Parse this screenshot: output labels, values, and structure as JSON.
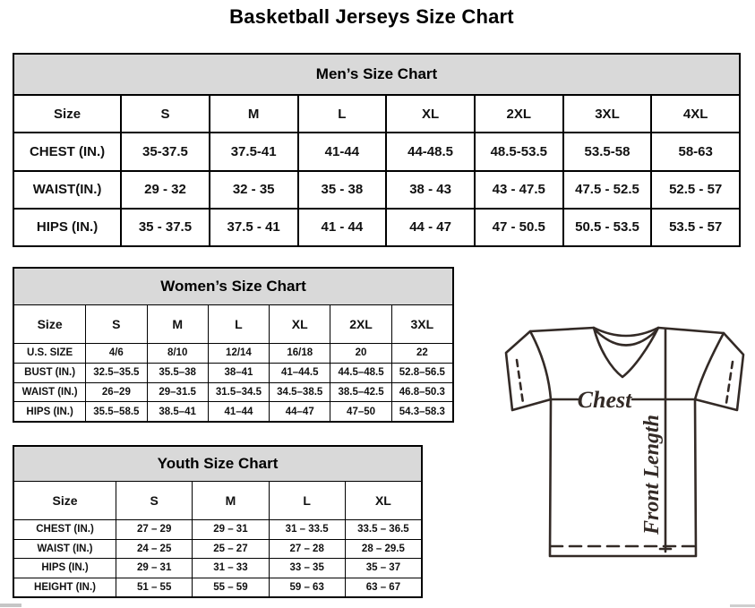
{
  "page": {
    "title": "Basketball Jerseys Size Chart"
  },
  "mens": {
    "title": "Men’s Size Chart",
    "columns": [
      "Size",
      "S",
      "M",
      "L",
      "XL",
      "2XL",
      "3XL",
      "4XL"
    ],
    "rows": [
      {
        "label": "CHEST (IN.)",
        "values": [
          "35-37.5",
          "37.5-41",
          "41-44",
          "44-48.5",
          "48.5-53.5",
          "53.5-58",
          "58-63"
        ]
      },
      {
        "label": "WAIST(IN.)",
        "values": [
          "29 - 32",
          "32 - 35",
          "35 - 38",
          "38 - 43",
          "43 - 47.5",
          "47.5 - 52.5",
          "52.5 - 57"
        ]
      },
      {
        "label": "HIPS (IN.)",
        "values": [
          "35 - 37.5",
          "37.5 - 41",
          "41 - 44",
          "44 - 47",
          "47 - 50.5",
          "50.5 - 53.5",
          "53.5 - 57"
        ]
      }
    ]
  },
  "womens": {
    "title": "Women’s Size Chart",
    "columns": [
      "Size",
      "S",
      "M",
      "L",
      "XL",
      "2XL",
      "3XL"
    ],
    "rows": [
      {
        "label": "U.S. SIZE",
        "values": [
          "4/6",
          "8/10",
          "12/14",
          "16/18",
          "20",
          "22"
        ]
      },
      {
        "label": "BUST (IN.)",
        "values": [
          "32.5–35.5",
          "35.5–38",
          "38–41",
          "41–44.5",
          "44.5–48.5",
          "52.8–56.5"
        ]
      },
      {
        "label": "WAIST (IN.)",
        "values": [
          "26–29",
          "29–31.5",
          "31.5–34.5",
          "34.5–38.5",
          "38.5–42.5",
          "46.8–50.3"
        ]
      },
      {
        "label": "HIPS (IN.)",
        "values": [
          "35.5–58.5",
          "38.5–41",
          "41–44",
          "44–47",
          "47–50",
          "54.3–58.3"
        ]
      }
    ]
  },
  "youth": {
    "title": "Youth Size Chart",
    "columns": [
      "Size",
      "S",
      "M",
      "L",
      "XL"
    ],
    "rows": [
      {
        "label": "CHEST (IN.)",
        "values": [
          "27 – 29",
          "29 – 31",
          "31 – 33.5",
          "33.5 – 36.5"
        ]
      },
      {
        "label": "WAIST (IN.)",
        "values": [
          "24 – 25",
          "25 – 27",
          "27 – 28",
          "28 – 29.5"
        ]
      },
      {
        "label": "HIPS (IN.)",
        "values": [
          "29 – 31",
          "31 – 33",
          "33 – 35",
          "35 – 37"
        ]
      },
      {
        "label": "HEIGHT (IN.)",
        "values": [
          "51 – 55",
          "55 – 59",
          "59 – 63",
          "63 – 67"
        ]
      }
    ]
  },
  "diagram": {
    "chest_label": "Chest",
    "front_length_label": "Front Length"
  },
  "colors": {
    "header_bg": "#d9d9d9",
    "border": "#000000",
    "diagram_line": "#332a26"
  }
}
